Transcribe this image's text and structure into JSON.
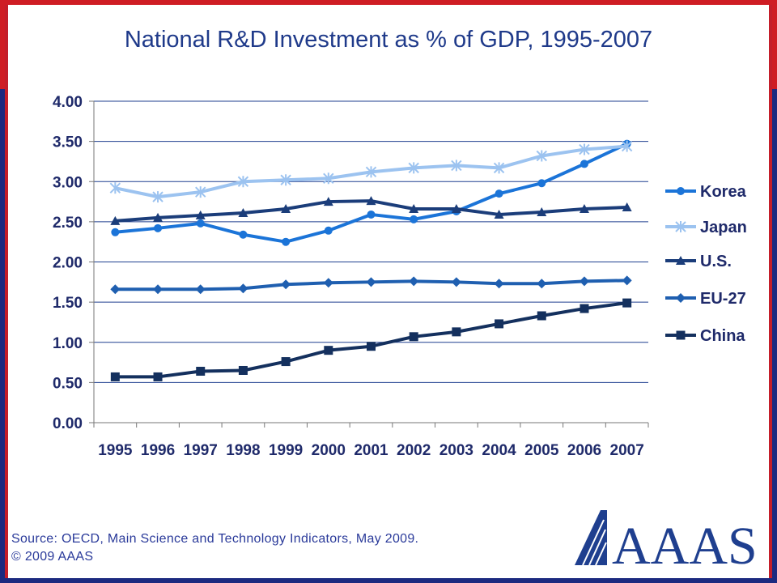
{
  "colors": {
    "frame_top": "#cf1d24",
    "frame_bottom": "#1c2a80",
    "title": "#1f3a8a",
    "axis_text": "#1f2a6a",
    "source_text": "#2a3a9a",
    "logo": "#1f3f8f"
  },
  "footer": {
    "source": "Source: OECD, Main Science and Technology Indicators, May 2009.",
    "copyright": "© 2009 AAAS"
  },
  "logo": {
    "text": "AAAS",
    "icon": "aaas-logo-icon"
  },
  "chart_data": {
    "type": "line",
    "title": "National R&D Investment as % of GDP, 1995-2007",
    "xlabel": "",
    "ylabel": "",
    "ylim": [
      0,
      4
    ],
    "yticks": [
      "0.00",
      "0.50",
      "1.00",
      "1.50",
      "2.00",
      "2.50",
      "3.00",
      "3.50",
      "4.00"
    ],
    "grid": "horizontal",
    "legend_position": "right",
    "categories": [
      "1995",
      "1996",
      "1997",
      "1998",
      "1999",
      "2000",
      "2001",
      "2002",
      "2003",
      "2004",
      "2005",
      "2006",
      "2007"
    ],
    "series": [
      {
        "name": "Korea",
        "color": "#1b74d8",
        "marker": "circle",
        "values": [
          2.37,
          2.42,
          2.48,
          2.34,
          2.25,
          2.39,
          2.59,
          2.53,
          2.63,
          2.85,
          2.98,
          3.22,
          3.47
        ]
      },
      {
        "name": "Japan",
        "color": "#9cc3f0",
        "marker": "star",
        "values": [
          2.92,
          2.81,
          2.87,
          3.0,
          3.02,
          3.04,
          3.12,
          3.17,
          3.2,
          3.17,
          3.32,
          3.4,
          3.44
        ]
      },
      {
        "name": "U.S.",
        "color": "#1b3d7a",
        "marker": "triangle",
        "values": [
          2.51,
          2.55,
          2.58,
          2.61,
          2.66,
          2.75,
          2.76,
          2.66,
          2.66,
          2.59,
          2.62,
          2.66,
          2.68
        ]
      },
      {
        "name": "EU-27",
        "color": "#1f5fb0",
        "marker": "diamond",
        "values": [
          1.66,
          1.66,
          1.66,
          1.67,
          1.72,
          1.74,
          1.75,
          1.76,
          1.75,
          1.73,
          1.73,
          1.76,
          1.77
        ]
      },
      {
        "name": "China",
        "color": "#14305e",
        "marker": "square",
        "values": [
          0.57,
          0.57,
          0.64,
          0.65,
          0.76,
          0.9,
          0.95,
          1.07,
          1.13,
          1.23,
          1.33,
          1.42,
          1.49
        ]
      }
    ]
  }
}
